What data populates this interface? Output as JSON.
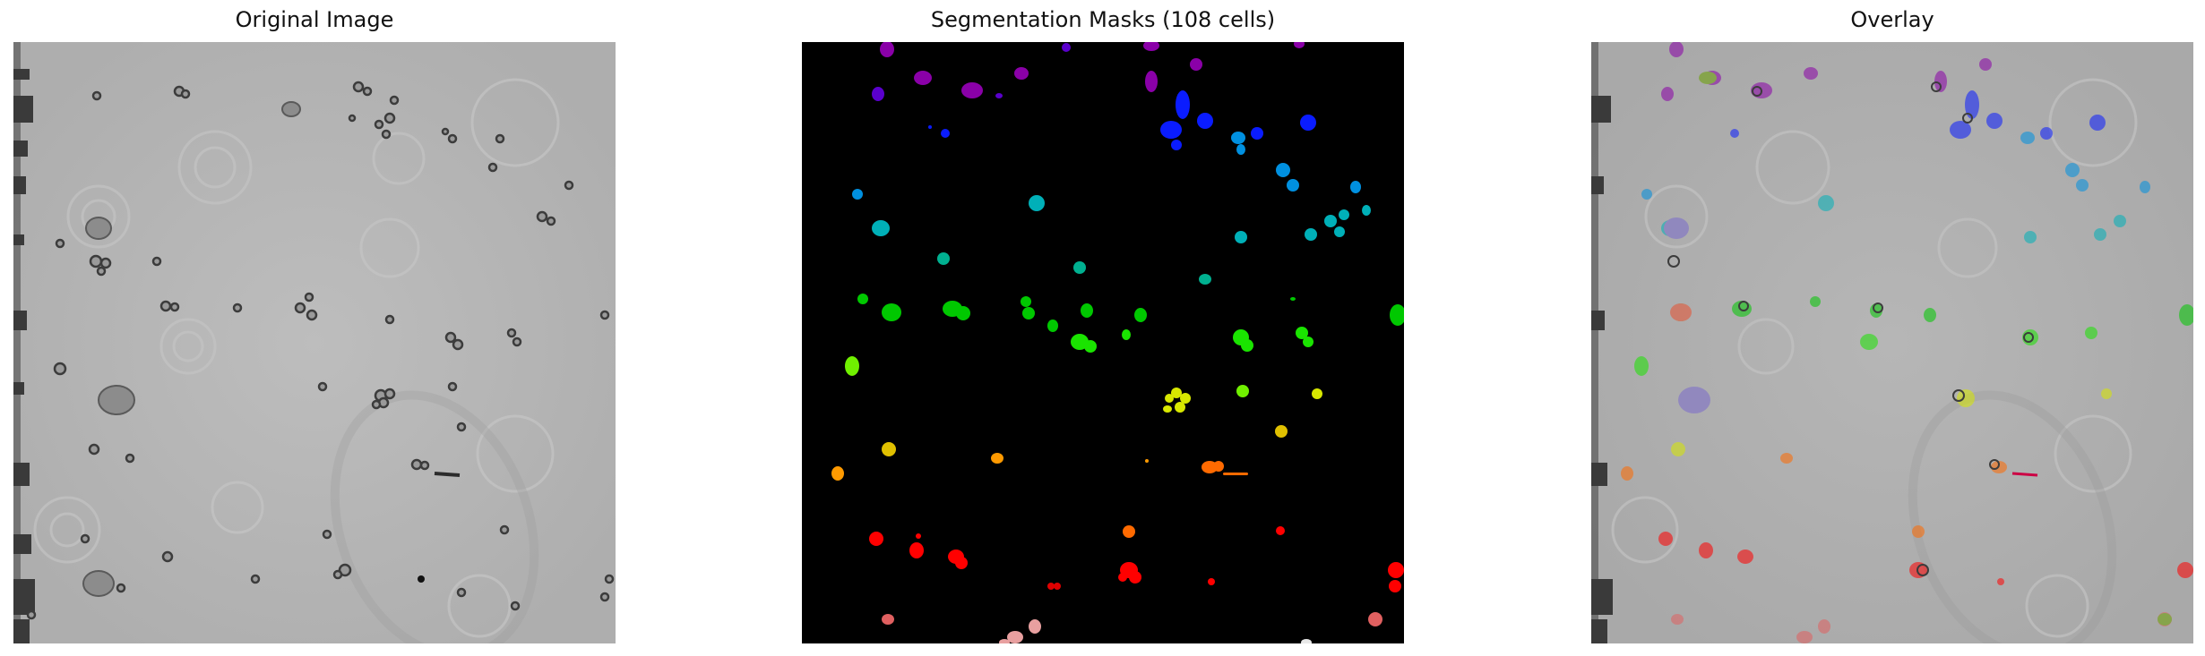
{
  "figure": {
    "panels": [
      {
        "title": "Original Image"
      },
      {
        "title": "Segmentation Masks (108 cells)"
      },
      {
        "title": "Overlay"
      }
    ]
  },
  "chart_data": [
    {
      "type": "image",
      "title": "Original Image",
      "description_colors": {
        "background": "#b4b4b4",
        "cell_edge": "#4a4a4a"
      }
    },
    {
      "type": "image",
      "title": "Segmentation Masks (108 cells)",
      "cell_count": 108,
      "description_colors": {
        "background": "#000000"
      }
    },
    {
      "type": "image",
      "title": "Overlay",
      "description_colors": {
        "background": "#b0b0b0"
      }
    }
  ]
}
